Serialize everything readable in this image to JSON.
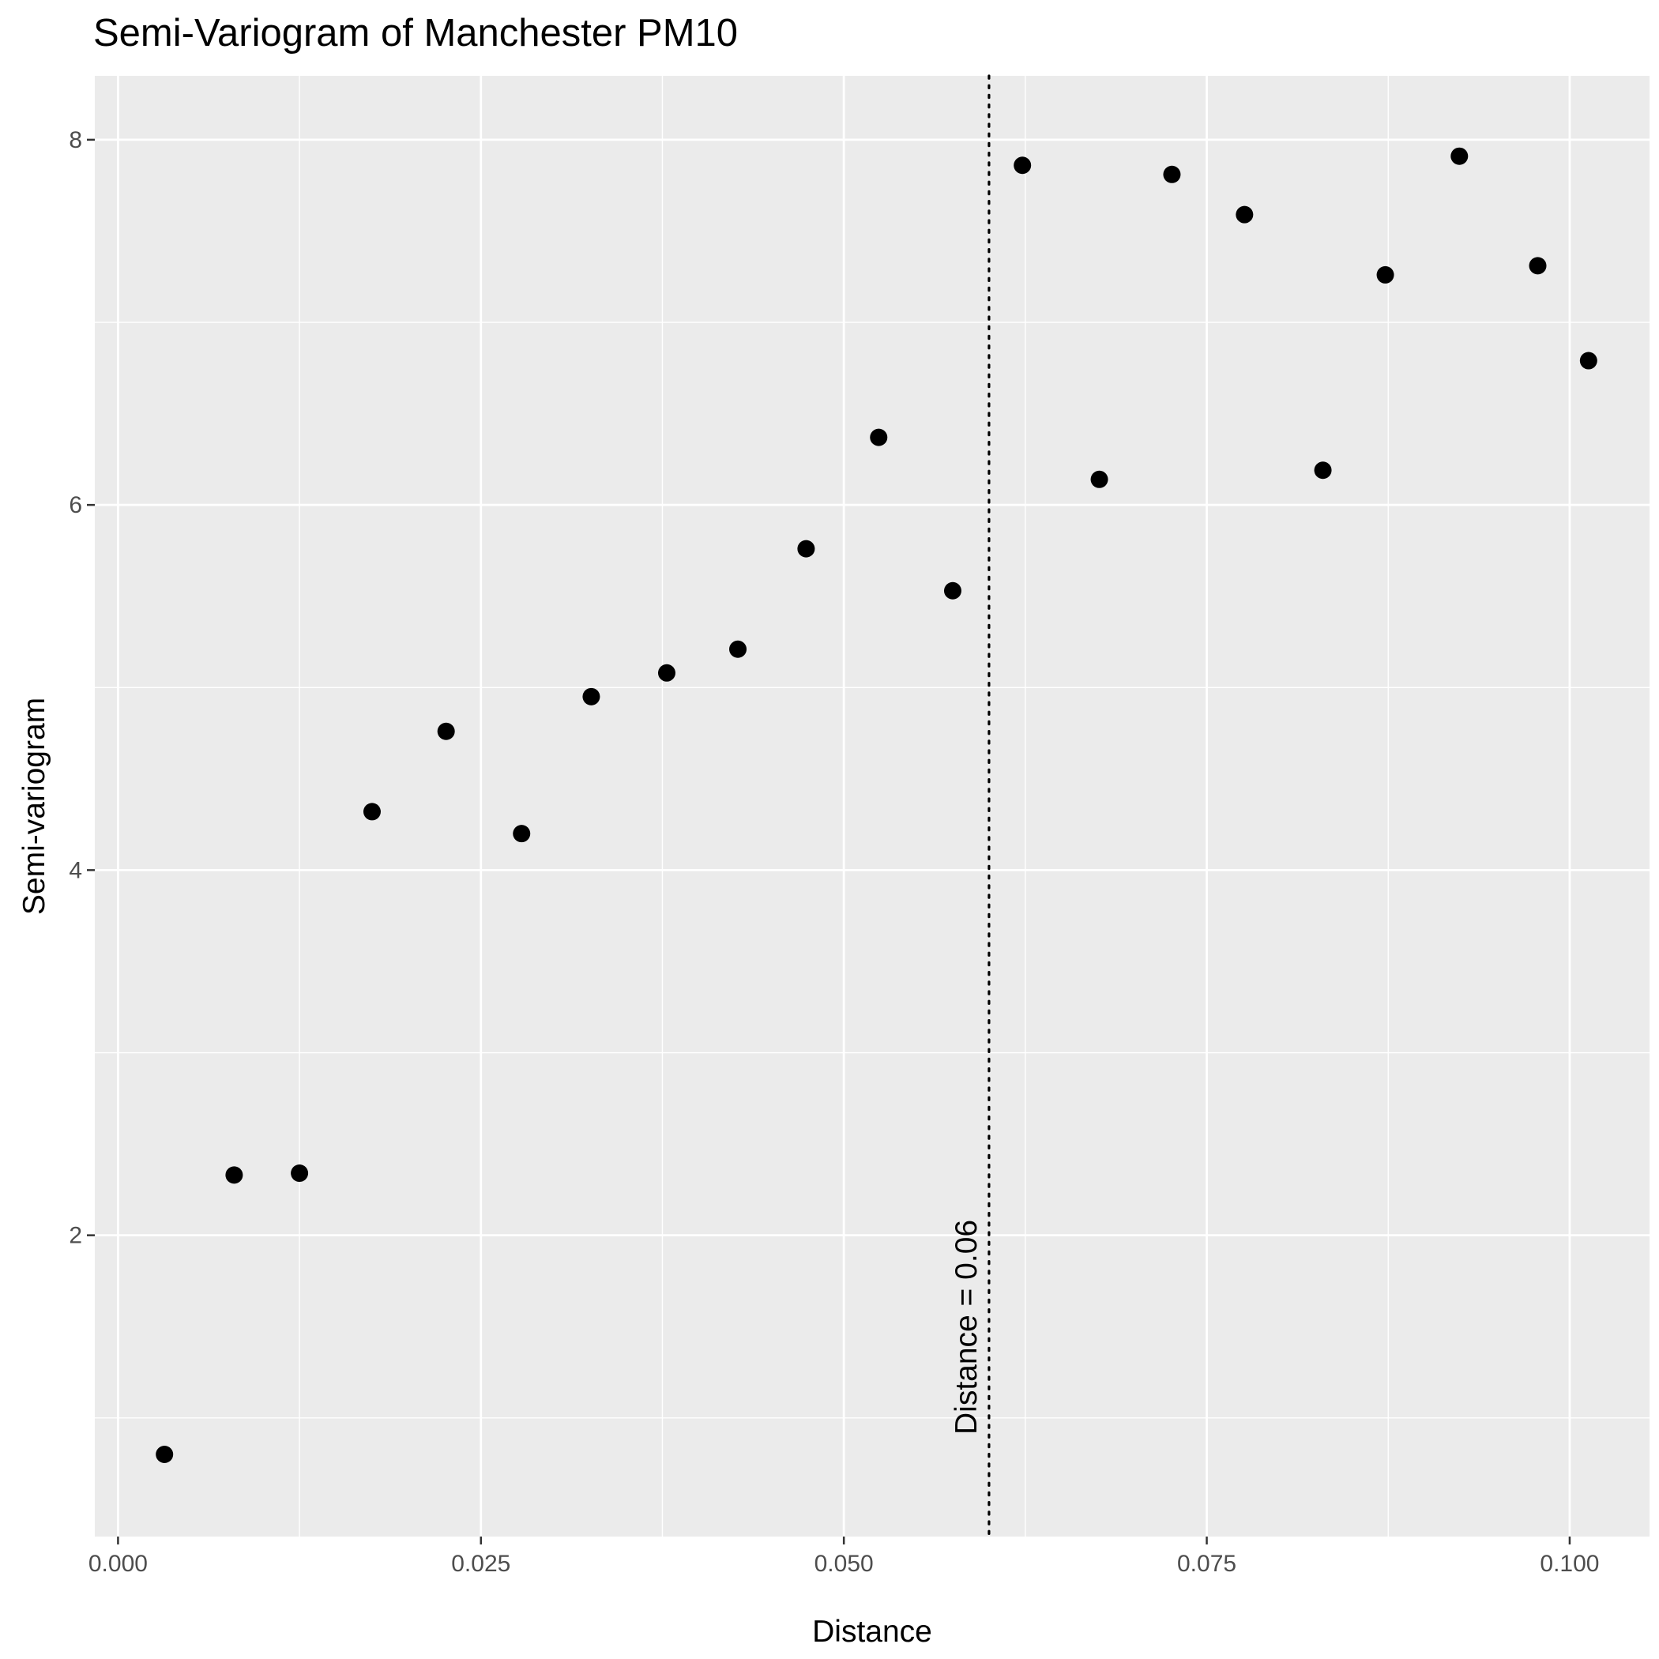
{
  "chart_data": {
    "type": "scatter",
    "title": "Semi-Variogram of Manchester PM10",
    "xlabel": "Distance",
    "ylabel": "Semi-variogram",
    "xlim": [
      -0.0016,
      0.1055
    ],
    "ylim": [
      0.35,
      8.35
    ],
    "x_ticks": [
      0.0,
      0.025,
      0.05,
      0.075,
      0.1
    ],
    "x_tick_labels": [
      "0.000",
      "0.025",
      "0.050",
      "0.075",
      "0.100"
    ],
    "x_minor_ticks": [
      0.0125,
      0.0375,
      0.0625,
      0.0875
    ],
    "y_ticks": [
      2,
      4,
      6,
      8
    ],
    "y_tick_labels": [
      "2",
      "4",
      "6",
      "8"
    ],
    "y_minor_ticks": [
      1,
      3,
      5,
      7
    ],
    "grid": true,
    "series": [
      {
        "x": [
          0.0032,
          0.008,
          0.0125,
          0.0175,
          0.0226,
          0.0278,
          0.0326,
          0.0378,
          0.0427,
          0.0474,
          0.0524,
          0.0575,
          0.0623,
          0.0676,
          0.0726,
          0.0776,
          0.083,
          0.0873,
          0.0924,
          0.0978,
          0.1013
        ],
        "y": [
          0.8,
          2.33,
          2.34,
          4.32,
          4.76,
          4.2,
          4.95,
          5.08,
          5.21,
          5.76,
          6.37,
          5.53,
          7.86,
          6.14,
          7.81,
          7.59,
          6.19,
          7.26,
          7.91,
          7.31,
          6.79
        ]
      }
    ],
    "annotations": [
      {
        "type": "vline",
        "x": 0.06,
        "style": "dotted",
        "label": "Distance = 0.06"
      }
    ],
    "colors": {
      "panel": "#ebebeb",
      "grid": "#ffffff",
      "points": "#000000",
      "tick_text": "#4d4d4d",
      "tick_line": "#333333"
    }
  }
}
